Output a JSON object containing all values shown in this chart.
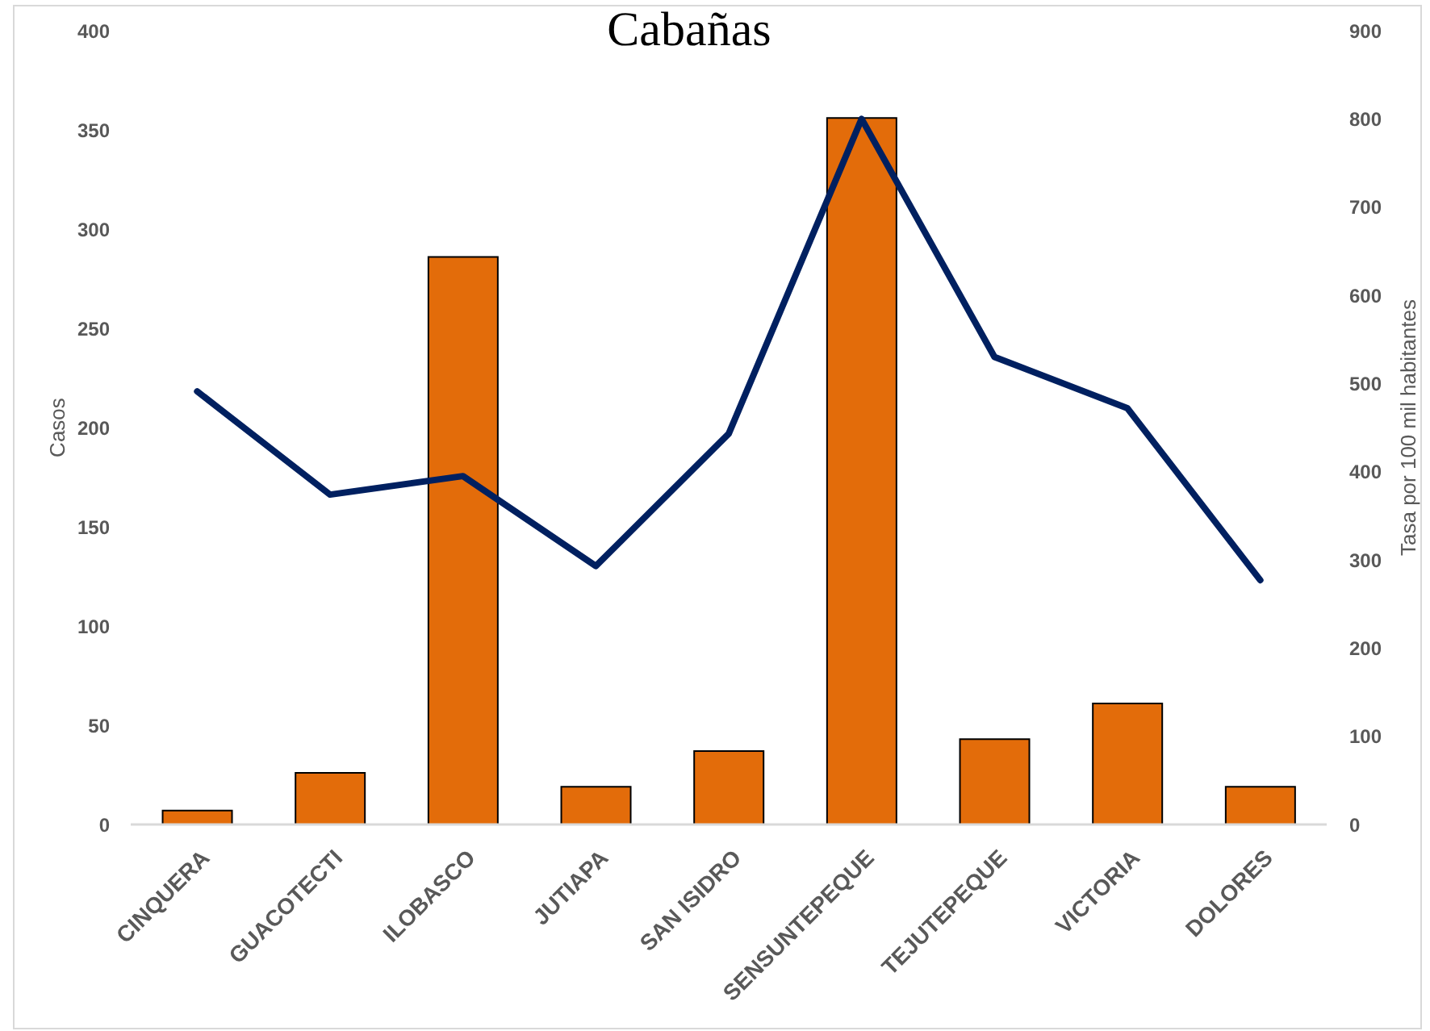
{
  "chart_data": {
    "type": "bar",
    "title": "Cabañas",
    "categories": [
      "CINQUERA",
      "GUACOTECTI",
      "ILOBASCO",
      "JUTIAPA",
      "SAN ISIDRO",
      "SENSUNTEPEQUE",
      "TEJUTEPEQUE",
      "VICTORIA",
      "DOLORES"
    ],
    "series": [
      {
        "color": "#e36c0a",
        "values": [
          7,
          26,
          286,
          19,
          37,
          356,
          43,
          61,
          19
        ]
      },
      {
        "type": "line",
        "axis": "y2",
        "color": "#002060",
        "values": [
          491,
          374,
          395,
          293,
          443,
          800,
          530,
          472,
          277
        ]
      }
    ],
    "ylabel": "Casos",
    "y2label": "Tasa por 100 mil habitantes",
    "ylim": [
      0,
      400
    ],
    "yticks": [
      0,
      50,
      100,
      150,
      200,
      250,
      300,
      350,
      400
    ],
    "y2lim": [
      0,
      900
    ],
    "y2ticks": [
      0,
      100,
      200,
      300,
      400,
      500,
      600,
      700,
      800,
      900
    ],
    "grid": false,
    "legend": false,
    "marker": "none"
  }
}
